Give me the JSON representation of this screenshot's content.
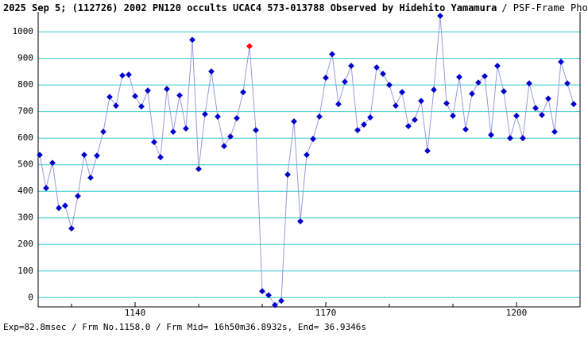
{
  "chart_data": {
    "type": "line",
    "title": "2025 Sep 5; (112726) 2002 PN120 occults UCAC4 573-013788 Observed by Hidehito Yamamura",
    "subtitle": "/ PSF-Frame Photometry /",
    "footer": "Exp=82.8msec / Frm No.1158.0 / Frm Mid= 16h50m36.8932s, End= 36.9346s",
    "x": [
      1125,
      1126,
      1127,
      1128,
      1129,
      1130,
      1131,
      1132,
      1133,
      1134,
      1135,
      1136,
      1137,
      1138,
      1139,
      1140,
      1141,
      1142,
      1143,
      1144,
      1145,
      1146,
      1147,
      1148,
      1149,
      1150,
      1151,
      1152,
      1153,
      1154,
      1155,
      1156,
      1157,
      1158,
      1159,
      1160,
      1161,
      1162,
      1163,
      1164,
      1165,
      1166,
      1167,
      1168,
      1169,
      1170,
      1171,
      1172,
      1173,
      1174,
      1175,
      1176,
      1177,
      1178,
      1179,
      1180,
      1181,
      1182,
      1183,
      1184,
      1185,
      1186,
      1187,
      1188,
      1189,
      1190,
      1191,
      1192,
      1193,
      1194,
      1195,
      1196,
      1197,
      1198,
      1199,
      1200,
      1201,
      1202,
      1203,
      1204,
      1205,
      1206,
      1207,
      1208,
      1209
    ],
    "series": [
      {
        "color": "#0000cc",
        "values": [
          537,
          412,
          507,
          337,
          346,
          260,
          382,
          537,
          451,
          534,
          624,
          755,
          722,
          836,
          839,
          758,
          719,
          779,
          585,
          528,
          785,
          624,
          761,
          636,
          970,
          484,
          690,
          851,
          681,
          570,
          606,
          675,
          773,
          946,
          630,
          24,
          9,
          -28,
          -12,
          463,
          663,
          287,
          537,
          597,
          681,
          827,
          916,
          728,
          812,
          872,
          630,
          651,
          678,
          866,
          842,
          800,
          722,
          773,
          645,
          669,
          740,
          552,
          782,
          1060,
          731,
          684,
          830,
          633,
          767,
          809,
          833,
          612,
          872,
          776,
          600,
          684,
          600,
          806,
          713,
          687,
          749,
          624,
          887,
          806,
          728
        ]
      }
    ],
    "line_color": "#9999dd",
    "highlight": {
      "x": 1158,
      "color": "#ff0000"
    },
    "xlim": [
      1124.75,
      1210
    ],
    "xticks": [
      1140,
      1170,
      1200
    ],
    "xminorticks": [
      1130,
      1150,
      1160,
      1180,
      1190
    ],
    "ylim": [
      -35,
      1075
    ],
    "yticks": [
      0,
      100,
      200,
      300,
      400,
      500,
      600,
      700,
      800,
      900,
      1000
    ],
    "grid": true,
    "grid_color": "#33cccc"
  }
}
